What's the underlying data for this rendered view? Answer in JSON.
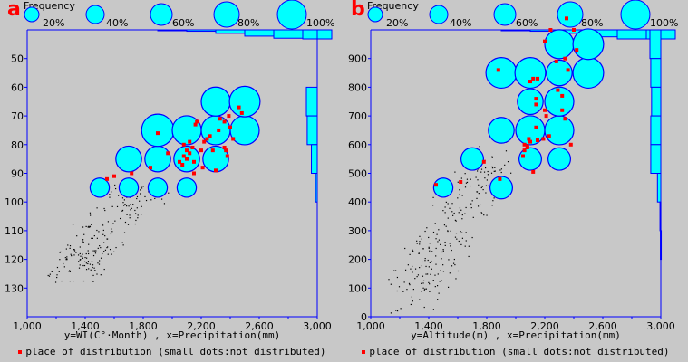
{
  "colors": {
    "axis": "#0000ff",
    "bubble_fill": "#00ffff",
    "bubble_stroke": "#0000ff",
    "distributed": "#ff0000",
    "not_distributed": "#000000",
    "background": "#c8c8c8",
    "panel_label": "#ff0000"
  },
  "frequency_label": "Frequency",
  "legend_text": "place of distribution (small dots:not distributed)",
  "frequency_scale": [
    {
      "label": "20%",
      "value": 20
    },
    {
      "label": "40%",
      "value": 40
    },
    {
      "label": "60%",
      "value": 60
    },
    {
      "label": "80%",
      "value": 80
    },
    {
      "label": "100%",
      "value": 100
    }
  ],
  "chart_data": [
    {
      "panel": "a",
      "type": "scatter",
      "xlabel": "x=Precipitation(mm)",
      "ylabel": "y=WI(C°·Month)",
      "caption": "y=WI(C°·Month) , x=Precipitation(mm)",
      "xlim": [
        1000,
        3000
      ],
      "ylim": [
        140,
        40
      ],
      "xticks": [
        1000,
        1200,
        1400,
        1600,
        1800,
        2000,
        2200,
        2400,
        2600,
        2800,
        3000
      ],
      "xtick_labels": [
        "1,000",
        "1,400",
        "1,800",
        "2,200",
        "2,600",
        "3,000"
      ],
      "yticks": [
        50,
        60,
        70,
        80,
        90,
        100,
        110,
        120,
        130
      ],
      "bubbles": [
        {
          "x": 1500,
          "y": 95,
          "freq": 20
        },
        {
          "x": 1700,
          "y": 95,
          "freq": 20
        },
        {
          "x": 1900,
          "y": 95,
          "freq": 20
        },
        {
          "x": 2100,
          "y": 95,
          "freq": 20
        },
        {
          "x": 1700,
          "y": 85,
          "freq": 40
        },
        {
          "x": 1900,
          "y": 85,
          "freq": 40
        },
        {
          "x": 2100,
          "y": 85,
          "freq": 40
        },
        {
          "x": 2300,
          "y": 85,
          "freq": 40
        },
        {
          "x": 1900,
          "y": 75,
          "freq": 60
        },
        {
          "x": 2100,
          "y": 75,
          "freq": 50
        },
        {
          "x": 2300,
          "y": 75,
          "freq": 50
        },
        {
          "x": 2500,
          "y": 75,
          "freq": 50
        },
        {
          "x": 2300,
          "y": 65,
          "freq": 50
        },
        {
          "x": 2500,
          "y": 65,
          "freq": 55
        }
      ],
      "distributed_points": [
        [
          1550,
          92
        ],
        [
          1600,
          91
        ],
        [
          1720,
          90
        ],
        [
          1850,
          88
        ],
        [
          1900,
          76
        ],
        [
          1970,
          83
        ],
        [
          2050,
          86
        ],
        [
          2070,
          87
        ],
        [
          2080,
          84
        ],
        [
          2100,
          85
        ],
        [
          2120,
          83
        ],
        [
          2150,
          86
        ],
        [
          2080,
          80
        ],
        [
          2100,
          82
        ],
        [
          2120,
          79
        ],
        [
          2140,
          81
        ],
        [
          2160,
          73
        ],
        [
          2170,
          72
        ],
        [
          2200,
          82
        ],
        [
          2220,
          79
        ],
        [
          2240,
          78
        ],
        [
          2260,
          77
        ],
        [
          2280,
          82
        ],
        [
          2320,
          75
        ],
        [
          2330,
          71
        ],
        [
          2360,
          72
        ],
        [
          2390,
          70
        ],
        [
          2400,
          74
        ],
        [
          2420,
          78
        ],
        [
          2460,
          67
        ],
        [
          2480,
          69
        ],
        [
          2360,
          81
        ],
        [
          2370,
          82
        ],
        [
          2380,
          84
        ],
        [
          2300,
          89
        ],
        [
          2210,
          88
        ],
        [
          2150,
          90
        ]
      ],
      "freq_x": {
        "bins": [
          1400,
          1600,
          1800,
          2000,
          2200,
          2400
        ],
        "values": [
          1,
          2,
          5,
          9,
          12,
          13
        ]
      },
      "freq_y": {
        "bins": [
          60,
          70,
          80,
          90
        ],
        "values": [
          13,
          12,
          7,
          2
        ]
      }
    },
    {
      "panel": "b",
      "type": "scatter",
      "xlabel": "x=Precipitation(mm)",
      "ylabel": "y=Altitude(m)",
      "caption": "y=Altitude(m) , x=Precipitation(mm)",
      "xlim": [
        1000,
        3000
      ],
      "ylim": [
        0,
        1000
      ],
      "xticks": [
        1000,
        1200,
        1400,
        1600,
        1800,
        2000,
        2200,
        2400,
        2600,
        2800,
        3000
      ],
      "xtick_labels": [
        "1,000",
        "1,400",
        "1,800",
        "2,200",
        "2,600",
        "3,000"
      ],
      "yticks": [
        0,
        100,
        200,
        300,
        400,
        500,
        600,
        700,
        800,
        900
      ],
      "bubbles": [
        {
          "x": 1500,
          "y": 450,
          "freq": 20
        },
        {
          "x": 1900,
          "y": 450,
          "freq": 30
        },
        {
          "x": 1700,
          "y": 550,
          "freq": 30
        },
        {
          "x": 2100,
          "y": 550,
          "freq": 30
        },
        {
          "x": 2300,
          "y": 550,
          "freq": 30
        },
        {
          "x": 1900,
          "y": 650,
          "freq": 40
        },
        {
          "x": 2100,
          "y": 650,
          "freq": 50
        },
        {
          "x": 2300,
          "y": 650,
          "freq": 50
        },
        {
          "x": 2100,
          "y": 750,
          "freq": 40
        },
        {
          "x": 2300,
          "y": 750,
          "freq": 50
        },
        {
          "x": 1900,
          "y": 850,
          "freq": 55
        },
        {
          "x": 2100,
          "y": 850,
          "freq": 55
        },
        {
          "x": 2300,
          "y": 850,
          "freq": 40
        },
        {
          "x": 2500,
          "y": 850,
          "freq": 55
        },
        {
          "x": 2300,
          "y": 950,
          "freq": 50
        },
        {
          "x": 2500,
          "y": 950,
          "freq": 55
        }
      ],
      "distributed_points": [
        [
          1450,
          460
        ],
        [
          1620,
          470
        ],
        [
          1890,
          480
        ],
        [
          1780,
          540
        ],
        [
          2120,
          505
        ],
        [
          2050,
          560
        ],
        [
          2060,
          580
        ],
        [
          2080,
          595
        ],
        [
          2100,
          610
        ],
        [
          2090,
          620
        ],
        [
          2150,
          615
        ],
        [
          2190,
          620
        ],
        [
          2140,
          660
        ],
        [
          2060,
          600
        ],
        [
          2080,
          590
        ],
        [
          2230,
          630
        ],
        [
          2380,
          600
        ],
        [
          2210,
          700
        ],
        [
          2340,
          690
        ],
        [
          2320,
          720
        ],
        [
          2320,
          770
        ],
        [
          2140,
          740
        ],
        [
          2140,
          760
        ],
        [
          2200,
          720
        ],
        [
          2290,
          790
        ],
        [
          2100,
          820
        ],
        [
          2150,
          830
        ],
        [
          2120,
          830
        ],
        [
          1880,
          860
        ],
        [
          2360,
          860
        ],
        [
          2280,
          890
        ],
        [
          2340,
          900
        ],
        [
          2420,
          930
        ],
        [
          2200,
          960
        ],
        [
          2240,
          1000
        ],
        [
          2400,
          1000
        ],
        [
          2350,
          1040
        ]
      ],
      "freq_x": {
        "bins": [
          1400,
          1600,
          1800,
          2000,
          2200,
          2400
        ],
        "values": [
          1,
          2,
          5,
          10,
          13,
          13
        ]
      },
      "freq_y": {
        "bins": [
          900,
          800,
          700,
          600,
          500,
          400,
          300,
          200
        ],
        "values": [
          13,
          12,
          11,
          12,
          12,
          4,
          1,
          0.5
        ]
      }
    }
  ]
}
